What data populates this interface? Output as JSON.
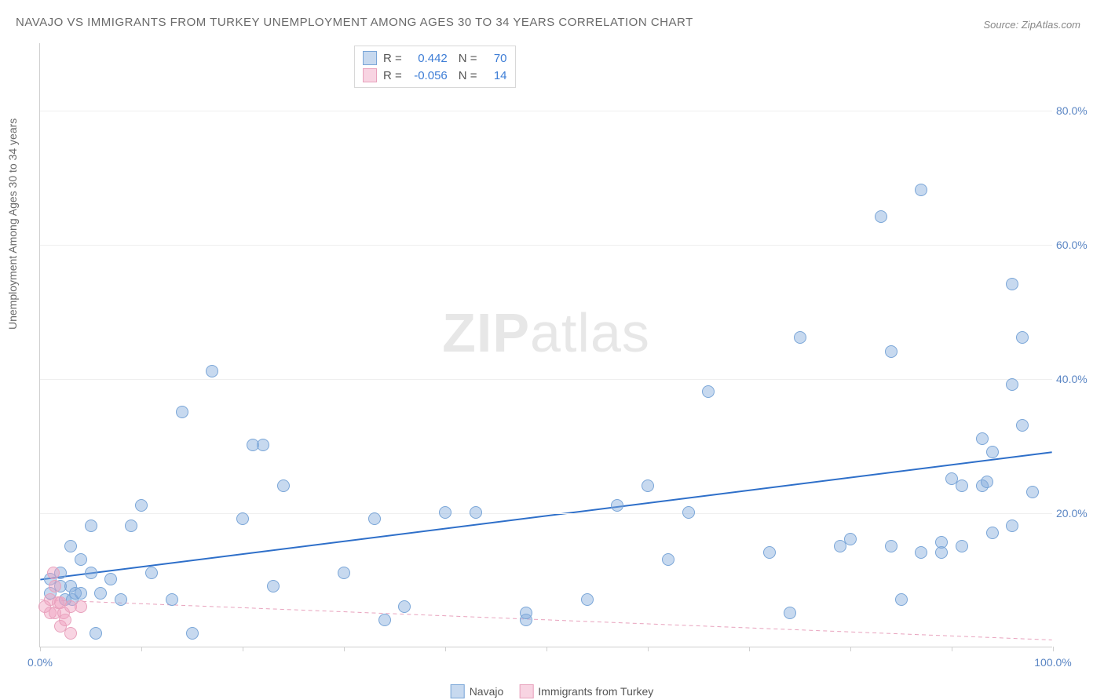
{
  "title": "NAVAJO VS IMMIGRANTS FROM TURKEY UNEMPLOYMENT AMONG AGES 30 TO 34 YEARS CORRELATION CHART",
  "source": "Source: ZipAtlas.com",
  "ylabel": "Unemployment Among Ages 30 to 34 years",
  "watermark_zip": "ZIP",
  "watermark_atlas": "atlas",
  "chart": {
    "type": "scatter",
    "xlim": [
      0,
      100
    ],
    "ylim": [
      0,
      90
    ],
    "yticks": [
      20,
      40,
      60,
      80
    ],
    "ytick_labels": [
      "20.0%",
      "40.0%",
      "60.0%",
      "80.0%"
    ],
    "xticks": [
      0,
      10,
      20,
      30,
      40,
      50,
      60,
      70,
      80,
      90,
      100
    ],
    "xtick_labels_shown": {
      "0": "0.0%",
      "100": "100.0%"
    },
    "grid_color": "#efefef",
    "axis_color": "#cfcfcf",
    "tick_label_color": "#5b86c4",
    "point_radius": 8,
    "series": [
      {
        "name": "Navajo",
        "color_fill": "rgba(130,170,220,0.45)",
        "color_stroke": "#7aa6d8",
        "r_label": "R =",
        "r_value": "0.442",
        "n_label": "N =",
        "n_value": "70",
        "trend": {
          "y_at_x0": 10,
          "y_at_x100": 29,
          "stroke": "#2e6fc9",
          "width": 2,
          "dash": "none"
        },
        "points": [
          [
            1,
            10
          ],
          [
            1,
            8
          ],
          [
            2,
            9
          ],
          [
            2,
            11
          ],
          [
            2.5,
            7
          ],
          [
            3,
            15
          ],
          [
            3,
            9
          ],
          [
            3.2,
            7
          ],
          [
            3.5,
            8
          ],
          [
            4,
            13
          ],
          [
            4,
            8
          ],
          [
            5,
            18
          ],
          [
            5,
            11
          ],
          [
            5.5,
            2
          ],
          [
            6,
            8
          ],
          [
            7,
            10
          ],
          [
            8,
            7
          ],
          [
            9,
            18
          ],
          [
            10,
            21
          ],
          [
            11,
            11
          ],
          [
            13,
            7
          ],
          [
            14,
            35
          ],
          [
            15,
            2
          ],
          [
            17,
            41
          ],
          [
            20,
            19
          ],
          [
            21,
            30
          ],
          [
            22,
            30
          ],
          [
            23,
            9
          ],
          [
            24,
            24
          ],
          [
            30,
            11
          ],
          [
            33,
            19
          ],
          [
            34,
            4
          ],
          [
            36,
            6
          ],
          [
            40,
            20
          ],
          [
            43,
            20
          ],
          [
            48,
            4
          ],
          [
            48,
            5
          ],
          [
            54,
            7
          ],
          [
            57,
            21
          ],
          [
            60,
            24
          ],
          [
            62,
            13
          ],
          [
            64,
            20
          ],
          [
            66,
            38
          ],
          [
            72,
            14
          ],
          [
            74,
            5
          ],
          [
            75,
            46
          ],
          [
            79,
            15
          ],
          [
            80,
            16
          ],
          [
            83,
            64
          ],
          [
            84,
            44
          ],
          [
            84,
            15
          ],
          [
            85,
            7
          ],
          [
            87,
            68
          ],
          [
            87,
            14
          ],
          [
            89,
            14
          ],
          [
            89,
            15.5
          ],
          [
            90,
            25
          ],
          [
            91,
            24
          ],
          [
            91,
            15
          ],
          [
            93,
            31
          ],
          [
            93,
            24
          ],
          [
            93.5,
            24.5
          ],
          [
            94,
            29
          ],
          [
            94,
            17
          ],
          [
            96,
            54
          ],
          [
            96,
            39
          ],
          [
            96,
            18
          ],
          [
            97,
            46
          ],
          [
            97,
            33
          ],
          [
            98,
            23
          ]
        ]
      },
      {
        "name": "Immigrants from Turkey",
        "color_fill": "rgba(240,160,190,0.45)",
        "color_stroke": "#e8a2bd",
        "r_label": "R =",
        "r_value": "-0.056",
        "n_label": "N =",
        "n_value": "14",
        "trend": {
          "y_at_x0": 7,
          "y_at_x100": 1,
          "stroke": "#e8a2bd",
          "width": 1,
          "dash": "5,4"
        },
        "points": [
          [
            0.5,
            6
          ],
          [
            1,
            5
          ],
          [
            1,
            7
          ],
          [
            1.3,
            11
          ],
          [
            1.5,
            9
          ],
          [
            1.5,
            5
          ],
          [
            1.8,
            6.5
          ],
          [
            2,
            3
          ],
          [
            2,
            6.5
          ],
          [
            2.3,
            5
          ],
          [
            2.5,
            4
          ],
          [
            3,
            2
          ],
          [
            3,
            6
          ],
          [
            4,
            6
          ]
        ]
      }
    ]
  },
  "bottom_legend": [
    "Navajo",
    "Immigrants from Turkey"
  ]
}
